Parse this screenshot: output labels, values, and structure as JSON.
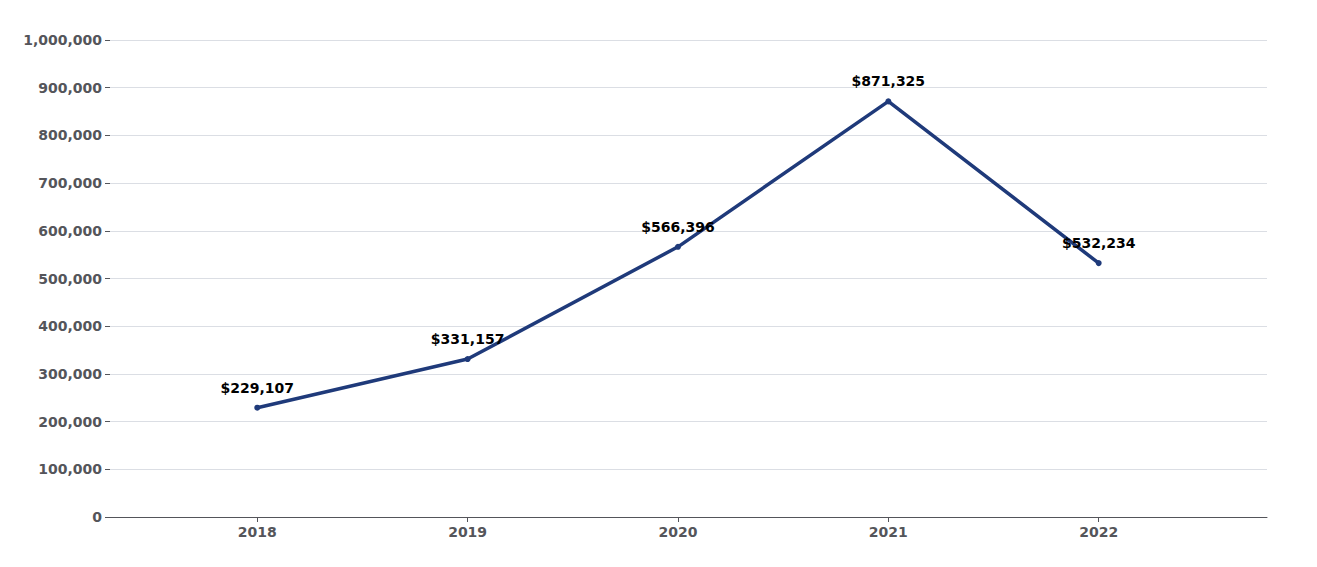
{
  "chart_data": {
    "type": "line",
    "x": [
      2018,
      2019,
      2020,
      2021,
      2022
    ],
    "values": [
      229107,
      331157,
      566396,
      871325,
      532234
    ],
    "value_labels": [
      "$229,107",
      "$331,157",
      "$566,396",
      "$871,325",
      "$532,234"
    ],
    "data_labels": true,
    "color": "#1F3A7A",
    "xlim": [
      2017.3,
      2022.8
    ],
    "xticks": [
      2018,
      2019,
      2020,
      2021,
      2022
    ],
    "ylim": [
      0,
      1000000
    ],
    "yticks": [
      0,
      {
        "value": 100000,
        "label": "100,000"
      },
      {
        "value": 200000,
        "label": "200,000"
      },
      {
        "value": 300000,
        "label": "300,000"
      },
      {
        "value": 400000,
        "label": "400,000"
      },
      {
        "value": 500000,
        "label": "500,000"
      },
      {
        "value": 600000,
        "label": "600,000"
      },
      {
        "value": 700000,
        "label": "700,000"
      },
      {
        "value": 800000,
        "label": "800,000"
      },
      {
        "value": 900000,
        "label": "900,000"
      },
      {
        "value": 1000000,
        "label": "1,000,000"
      }
    ],
    "grid": true
  }
}
